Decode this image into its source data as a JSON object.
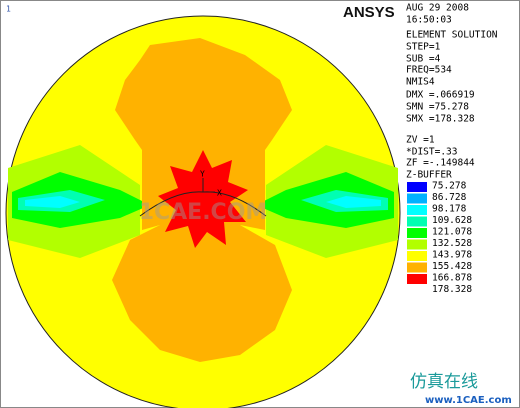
{
  "corner_label": "1",
  "logo": "ANSYS",
  "info": [
    "AUG 29 2008",
    "16:50:03",
    "ELEMENT SOLUTION",
    "STEP=1",
    "SUB =4",
    "FREQ=534",
    "NMIS4",
    "DMX =.066919",
    "SMN =75.278",
    "SMX =178.328",
    "ZV  =1",
    "*DIST=.33",
    "ZF  =-.149844",
    "Z-BUFFER"
  ],
  "legend": {
    "colors": [
      "#0000ff",
      "#00b2ff",
      "#00ffff",
      "#00ffb2",
      "#00ff00",
      "#b2ff00",
      "#ffff00",
      "#ffb200",
      "#ff0000"
    ],
    "labels": [
      "75.278",
      "86.728",
      "98.178",
      "109.628",
      "121.078",
      "132.528",
      "143.978",
      "155.428",
      "166.878",
      "178.328"
    ]
  },
  "axis_labels": {
    "y": "Y",
    "x": "X"
  },
  "watermark": {
    "center": "1CAE.COM",
    "brand": "仿真在线",
    "url": "www.1CAE.com"
  }
}
